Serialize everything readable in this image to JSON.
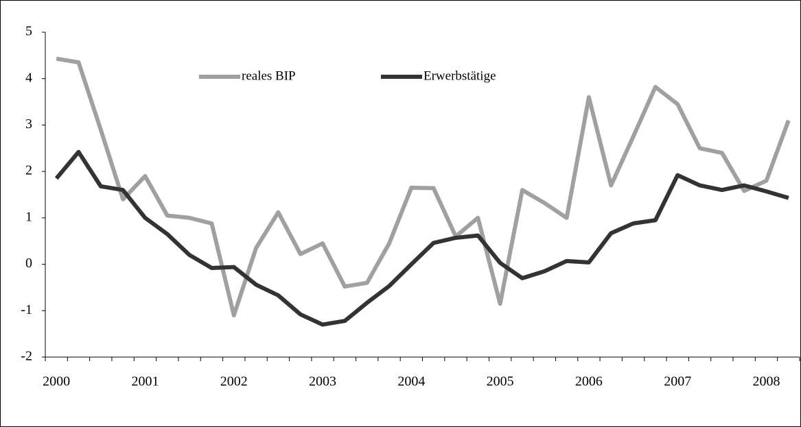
{
  "chart_data": {
    "type": "line",
    "categories": [
      "2000",
      null,
      null,
      null,
      "2001",
      null,
      null,
      null,
      "2002",
      null,
      null,
      null,
      "2003",
      null,
      null,
      null,
      "2004",
      null,
      null,
      null,
      "2005",
      null,
      null,
      null,
      "2006",
      null,
      null,
      null,
      "2007",
      null,
      null,
      null,
      "2008",
      null
    ],
    "series": [
      {
        "name": "reales BIP",
        "color": "#a0a0a0",
        "values": [
          4.43,
          4.35,
          2.9,
          1.4,
          1.9,
          1.05,
          1.0,
          0.88,
          -1.1,
          0.35,
          1.12,
          0.22,
          0.45,
          -0.48,
          -0.4,
          0.45,
          1.65,
          1.64,
          0.6,
          1.0,
          -0.85,
          1.6,
          1.32,
          1.0,
          3.6,
          1.7,
          2.75,
          3.82,
          3.45,
          2.5,
          2.4,
          1.58,
          1.8,
          3.1
        ]
      },
      {
        "name": "Erwerbstätige",
        "color": "#333333",
        "values": [
          1.85,
          2.42,
          1.68,
          1.6,
          1.0,
          0.65,
          0.2,
          -0.08,
          -0.06,
          -0.44,
          -0.67,
          -1.08,
          -1.3,
          -1.22,
          -0.83,
          -0.47,
          0.0,
          0.46,
          0.57,
          0.62,
          0.03,
          -0.3,
          -0.15,
          0.07,
          0.04,
          0.67,
          0.88,
          0.95,
          1.92,
          1.7,
          1.6,
          1.7,
          1.57,
          1.43
        ]
      }
    ],
    "ylim": [
      -2,
      5
    ],
    "yticks": [
      -2,
      -1,
      0,
      1,
      2,
      3,
      4,
      5
    ]
  }
}
